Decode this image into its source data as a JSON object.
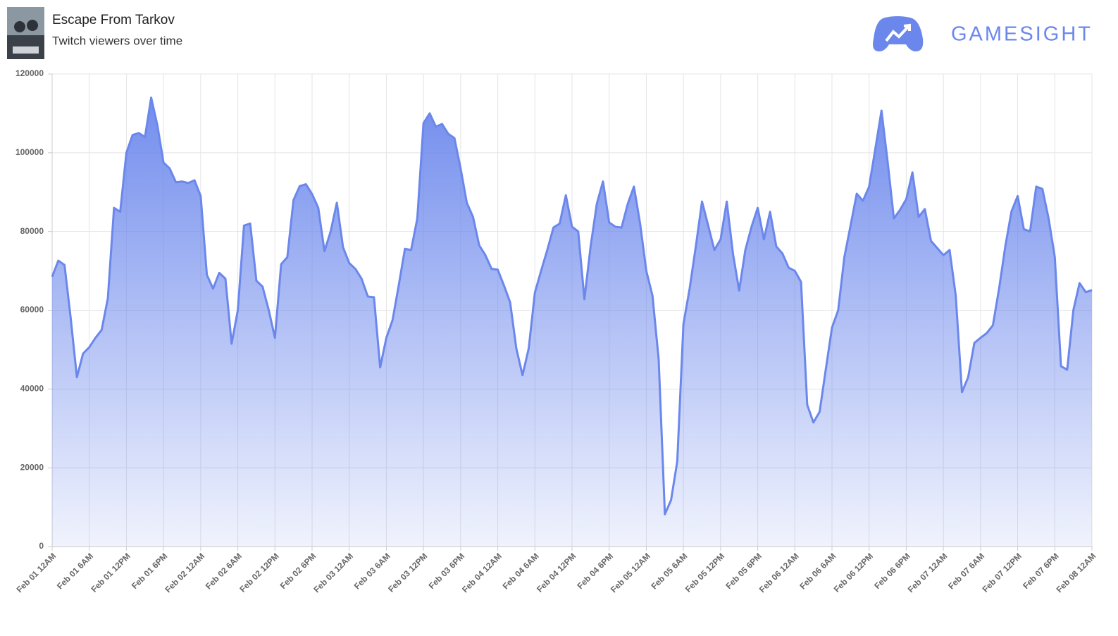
{
  "chart_data": {
    "type": "area",
    "title": "Escape From Tarkov",
    "subtitle": "Twitch viewers over time",
    "brand": "GAMESIGHT",
    "color": "#6b87ec",
    "grid": true,
    "ylim": [
      0,
      120000
    ],
    "yticks": [
      0,
      20000,
      40000,
      60000,
      80000,
      100000,
      120000
    ],
    "categories": [
      "Feb 01 12AM",
      null,
      null,
      null,
      null,
      null,
      "Feb 01 6AM",
      null,
      null,
      null,
      null,
      null,
      "Feb 01 12PM",
      null,
      null,
      null,
      null,
      null,
      "Feb 01 6PM",
      null,
      null,
      null,
      null,
      null,
      "Feb 02 12AM",
      null,
      null,
      null,
      null,
      null,
      "Feb 02 6AM",
      null,
      null,
      null,
      null,
      null,
      "Feb 02 12PM",
      null,
      null,
      null,
      null,
      null,
      "Feb 02 6PM",
      null,
      null,
      null,
      null,
      null,
      "Feb 03 12AM",
      null,
      null,
      null,
      null,
      null,
      "Feb 03 6AM",
      null,
      null,
      null,
      null,
      null,
      "Feb 03 12PM",
      null,
      null,
      null,
      null,
      null,
      "Feb 03 6PM",
      null,
      null,
      null,
      null,
      null,
      "Feb 04 12AM",
      null,
      null,
      null,
      null,
      null,
      "Feb 04 6AM",
      null,
      null,
      null,
      null,
      null,
      "Feb 04 12PM",
      null,
      null,
      null,
      null,
      null,
      "Feb 04 6PM",
      null,
      null,
      null,
      null,
      null,
      "Feb 05 12AM",
      null,
      null,
      null,
      null,
      null,
      "Feb 05 6AM",
      null,
      null,
      null,
      null,
      null,
      "Feb 05 12PM",
      null,
      null,
      null,
      null,
      null,
      "Feb 05 6PM",
      null,
      null,
      null,
      null,
      null,
      "Feb 06 12AM",
      null,
      null,
      null,
      null,
      null,
      "Feb 06 6AM",
      null,
      null,
      null,
      null,
      null,
      "Feb 06 12PM",
      null,
      null,
      null,
      null,
      null,
      "Feb 06 6PM",
      null,
      null,
      null,
      null,
      null,
      "Feb 07 12AM",
      null,
      null,
      null,
      null,
      null,
      "Feb 07 6AM",
      null,
      null,
      null,
      null,
      null,
      "Feb 07 12PM",
      null,
      null,
      null,
      null,
      null,
      "Feb 07 6PM",
      null,
      null,
      null,
      null,
      null,
      "Feb 08 12AM"
    ],
    "values": [
      68500,
      72600,
      71500,
      58000,
      43000,
      49000,
      50600,
      53000,
      55000,
      63000,
      86000,
      85000,
      100000,
      104500,
      105000,
      104000,
      114000,
      107000,
      97500,
      96000,
      92500,
      92700,
      92300,
      93000,
      89000,
      69000,
      65500,
      69500,
      68000,
      51500,
      60000,
      81500,
      82000,
      67500,
      66000,
      60000,
      53000,
      71700,
      73500,
      88000,
      91500,
      92000,
      89500,
      86000,
      75000,
      80000,
      87300,
      76000,
      72000,
      70500,
      68000,
      63500,
      63300,
      45500,
      53000,
      57500,
      66300,
      75600,
      75300,
      83300,
      107500,
      110000,
      106600,
      107300,
      104800,
      103700,
      96000,
      87300,
      83700,
      76500,
      74000,
      70500,
      70300,
      66300,
      62000,
      50300,
      43500,
      50300,
      64500,
      70000,
      75300,
      81000,
      82000,
      89200,
      81200,
      80000,
      62800,
      76200,
      87000,
      92700,
      82300,
      81200,
      81000,
      87000,
      91400,
      82000,
      70000,
      63700,
      47500,
      8200,
      11800,
      21600,
      56500,
      65500,
      76200,
      87600,
      81500,
      75300,
      78000,
      87600,
      74400,
      65000,
      75300,
      81200,
      86000,
      78000,
      85000,
      76200,
      74400,
      70800,
      70000,
      67200,
      36000,
      31500,
      34200,
      45000,
      55600,
      60000,
      73500,
      81500,
      89600,
      87800,
      91400,
      101000,
      110700,
      97600,
      83300,
      85500,
      88200,
      95000,
      83700,
      85700,
      77600,
      75800,
      74000,
      75300,
      63700,
      39200,
      43000,
      51700,
      53000,
      54200,
      56200,
      65500,
      76200,
      85100,
      89000,
      80600,
      80000,
      91400,
      90800,
      83300,
      73500,
      45800,
      44900,
      60000,
      66900,
      64600,
      65100
    ]
  }
}
